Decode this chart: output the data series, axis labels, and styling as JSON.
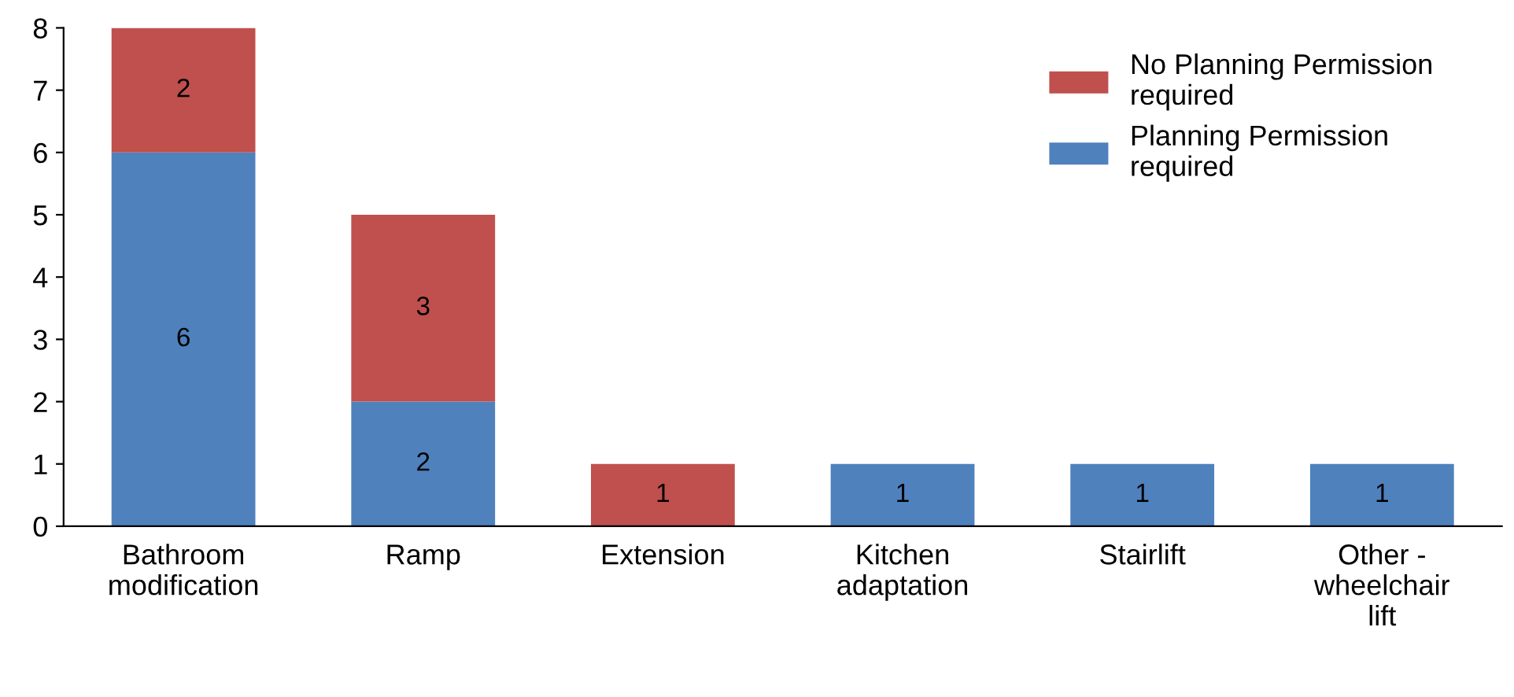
{
  "chart_data": {
    "type": "bar",
    "stacked": true,
    "categories": [
      "Bathroom\nmodification",
      "Ramp",
      "Extension",
      "Kitchen\nadaptation",
      "Stairlift",
      "Other -\nwheelchair\nlift"
    ],
    "series": [
      {
        "name": "Planning Permission\nrequired",
        "color": "#4f81bd",
        "values": [
          6,
          2,
          0,
          1,
          1,
          1
        ],
        "value_labels": [
          "6",
          "2",
          null,
          "1",
          "1",
          "1"
        ]
      },
      {
        "name": "No Planning Permission\nrequired",
        "color": "#c0504d",
        "values": [
          2,
          3,
          1,
          0,
          0,
          0
        ],
        "value_labels": [
          "2",
          "3",
          "1",
          null,
          null,
          null
        ]
      }
    ],
    "ylim": [
      0,
      8
    ],
    "yticks": [
      0,
      1,
      2,
      3,
      4,
      5,
      6,
      7,
      8
    ],
    "grid": false,
    "legend": "top right"
  }
}
